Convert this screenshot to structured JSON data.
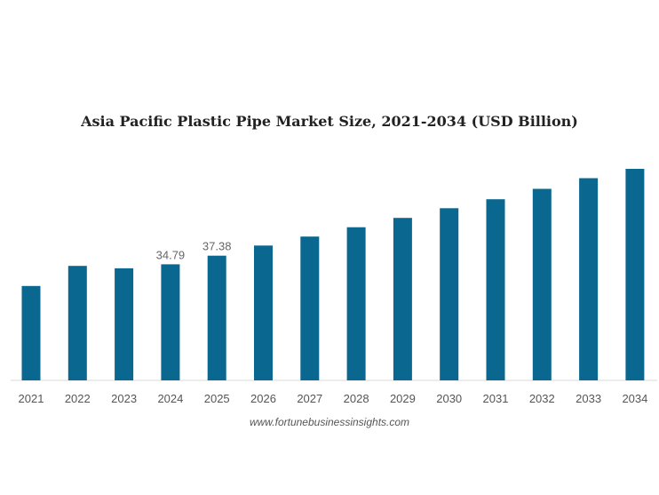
{
  "chart_data": {
    "type": "bar",
    "title": "Asia Pacific Plastic Pipe Market Size, 2021-2034 (USD Billion)",
    "categories": [
      "2021",
      "2022",
      "2023",
      "2024",
      "2025",
      "2026",
      "2027",
      "2028",
      "2029",
      "2030",
      "2031",
      "2032",
      "2033",
      "2034"
    ],
    "values": [
      28.3,
      34.3,
      33.6,
      34.79,
      37.38,
      40.4,
      43.1,
      45.9,
      48.7,
      51.6,
      54.3,
      57.4,
      60.6,
      63.4
    ],
    "data_labels": {
      "3": "34.79",
      "4": "37.38"
    },
    "ylim": [
      0,
      63.4
    ],
    "bar_color": "#0a6790",
    "grid": false,
    "legend": "none",
    "xlabel": "",
    "ylabel": ""
  },
  "source": "www.fortunebusinessinsights.com"
}
